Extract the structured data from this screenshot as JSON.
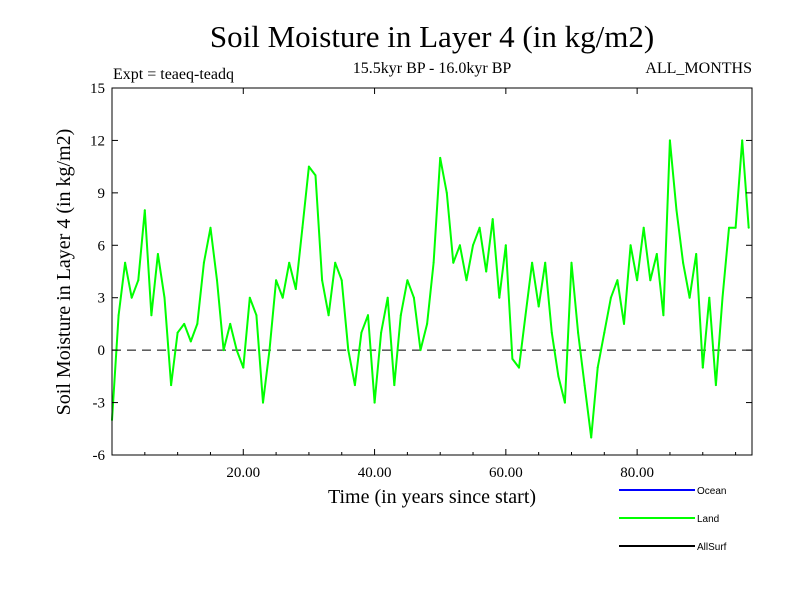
{
  "chart_data": {
    "type": "line",
    "title": "Soil Moisture in Layer 4 (in kg/m2)",
    "subtitle": "15.5kyr BP - 16.0kyr BP",
    "experiment_label": "Expt = teaeq-teadq",
    "months_label": "ALL_MONTHS",
    "xlabel": "Time (in years since start)",
    "ylabel": "Soil Moisture in Layer 4 (in kg/m2)",
    "xlim": [
      0,
      97.5
    ],
    "ylim": [
      -6,
      15
    ],
    "x_ticks": [
      20,
      40,
      60,
      80
    ],
    "x_tick_labels": [
      "20.00",
      "40.00",
      "60.00",
      "80.00"
    ],
    "y_ticks": [
      -6,
      -3,
      0,
      3,
      6,
      9,
      12,
      15
    ],
    "y_tick_labels": [
      "-6",
      "-3",
      "0",
      "3",
      "6",
      "9",
      "12",
      "15"
    ],
    "zero_line": 0,
    "legend": [
      {
        "name": "Ocean",
        "color": "#0000ff"
      },
      {
        "name": "Land",
        "color": "#00ff00"
      },
      {
        "name": "AllSurf",
        "color": "#000000"
      }
    ],
    "series": [
      {
        "name": "Land",
        "color": "#00ff00",
        "x": [
          0,
          1,
          2,
          3,
          4,
          5,
          6,
          7,
          8,
          9,
          10,
          11,
          12,
          13,
          14,
          15,
          16,
          17,
          18,
          19,
          20,
          21,
          22,
          23,
          24,
          25,
          26,
          27,
          28,
          29,
          30,
          31,
          32,
          33,
          34,
          35,
          36,
          37,
          38,
          39,
          40,
          41,
          42,
          43,
          44,
          45,
          46,
          47,
          48,
          49,
          50,
          51,
          52,
          53,
          54,
          55,
          56,
          57,
          58,
          59,
          60,
          61,
          62,
          63,
          64,
          65,
          66,
          67,
          68,
          69,
          70,
          71,
          72,
          73,
          74,
          75,
          76,
          77,
          78,
          79,
          80,
          81,
          82,
          83,
          84,
          85,
          86,
          87,
          88,
          89,
          90,
          91,
          92,
          93,
          94,
          95,
          96,
          97
        ],
        "values": [
          -4.0,
          2.0,
          5.0,
          3.0,
          4.0,
          8.0,
          2.0,
          5.5,
          3.0,
          -2.0,
          1.0,
          1.5,
          0.5,
          1.5,
          5.0,
          7.0,
          4.0,
          0.0,
          1.5,
          0.0,
          -1.0,
          3.0,
          2.0,
          -3.0,
          0.0,
          4.0,
          3.0,
          5.0,
          3.5,
          7.0,
          10.5,
          10.0,
          4.0,
          2.0,
          5.0,
          4.0,
          0.0,
          -2.0,
          1.0,
          2.0,
          -3.0,
          1.0,
          3.0,
          -2.0,
          2.0,
          4.0,
          3.0,
          0.0,
          1.5,
          5.0,
          11.0,
          9.0,
          5.0,
          6.0,
          4.0,
          6.0,
          7.0,
          4.5,
          7.5,
          3.0,
          6.0,
          -0.5,
          -1.0,
          2.0,
          5.0,
          2.5,
          5.0,
          1.0,
          -1.5,
          -3.0,
          5.0,
          1.0,
          -2.0,
          -5.0,
          -1.0,
          1.0,
          3.0,
          4.0,
          1.5,
          6.0,
          4.0,
          7.0,
          4.0,
          5.5,
          2.0,
          12.0,
          8.0,
          5.0,
          3.0,
          5.5,
          -1.0,
          3.0,
          -2.0,
          3.0,
          7.0,
          7.0,
          12.0,
          7.0
        ]
      }
    ]
  }
}
